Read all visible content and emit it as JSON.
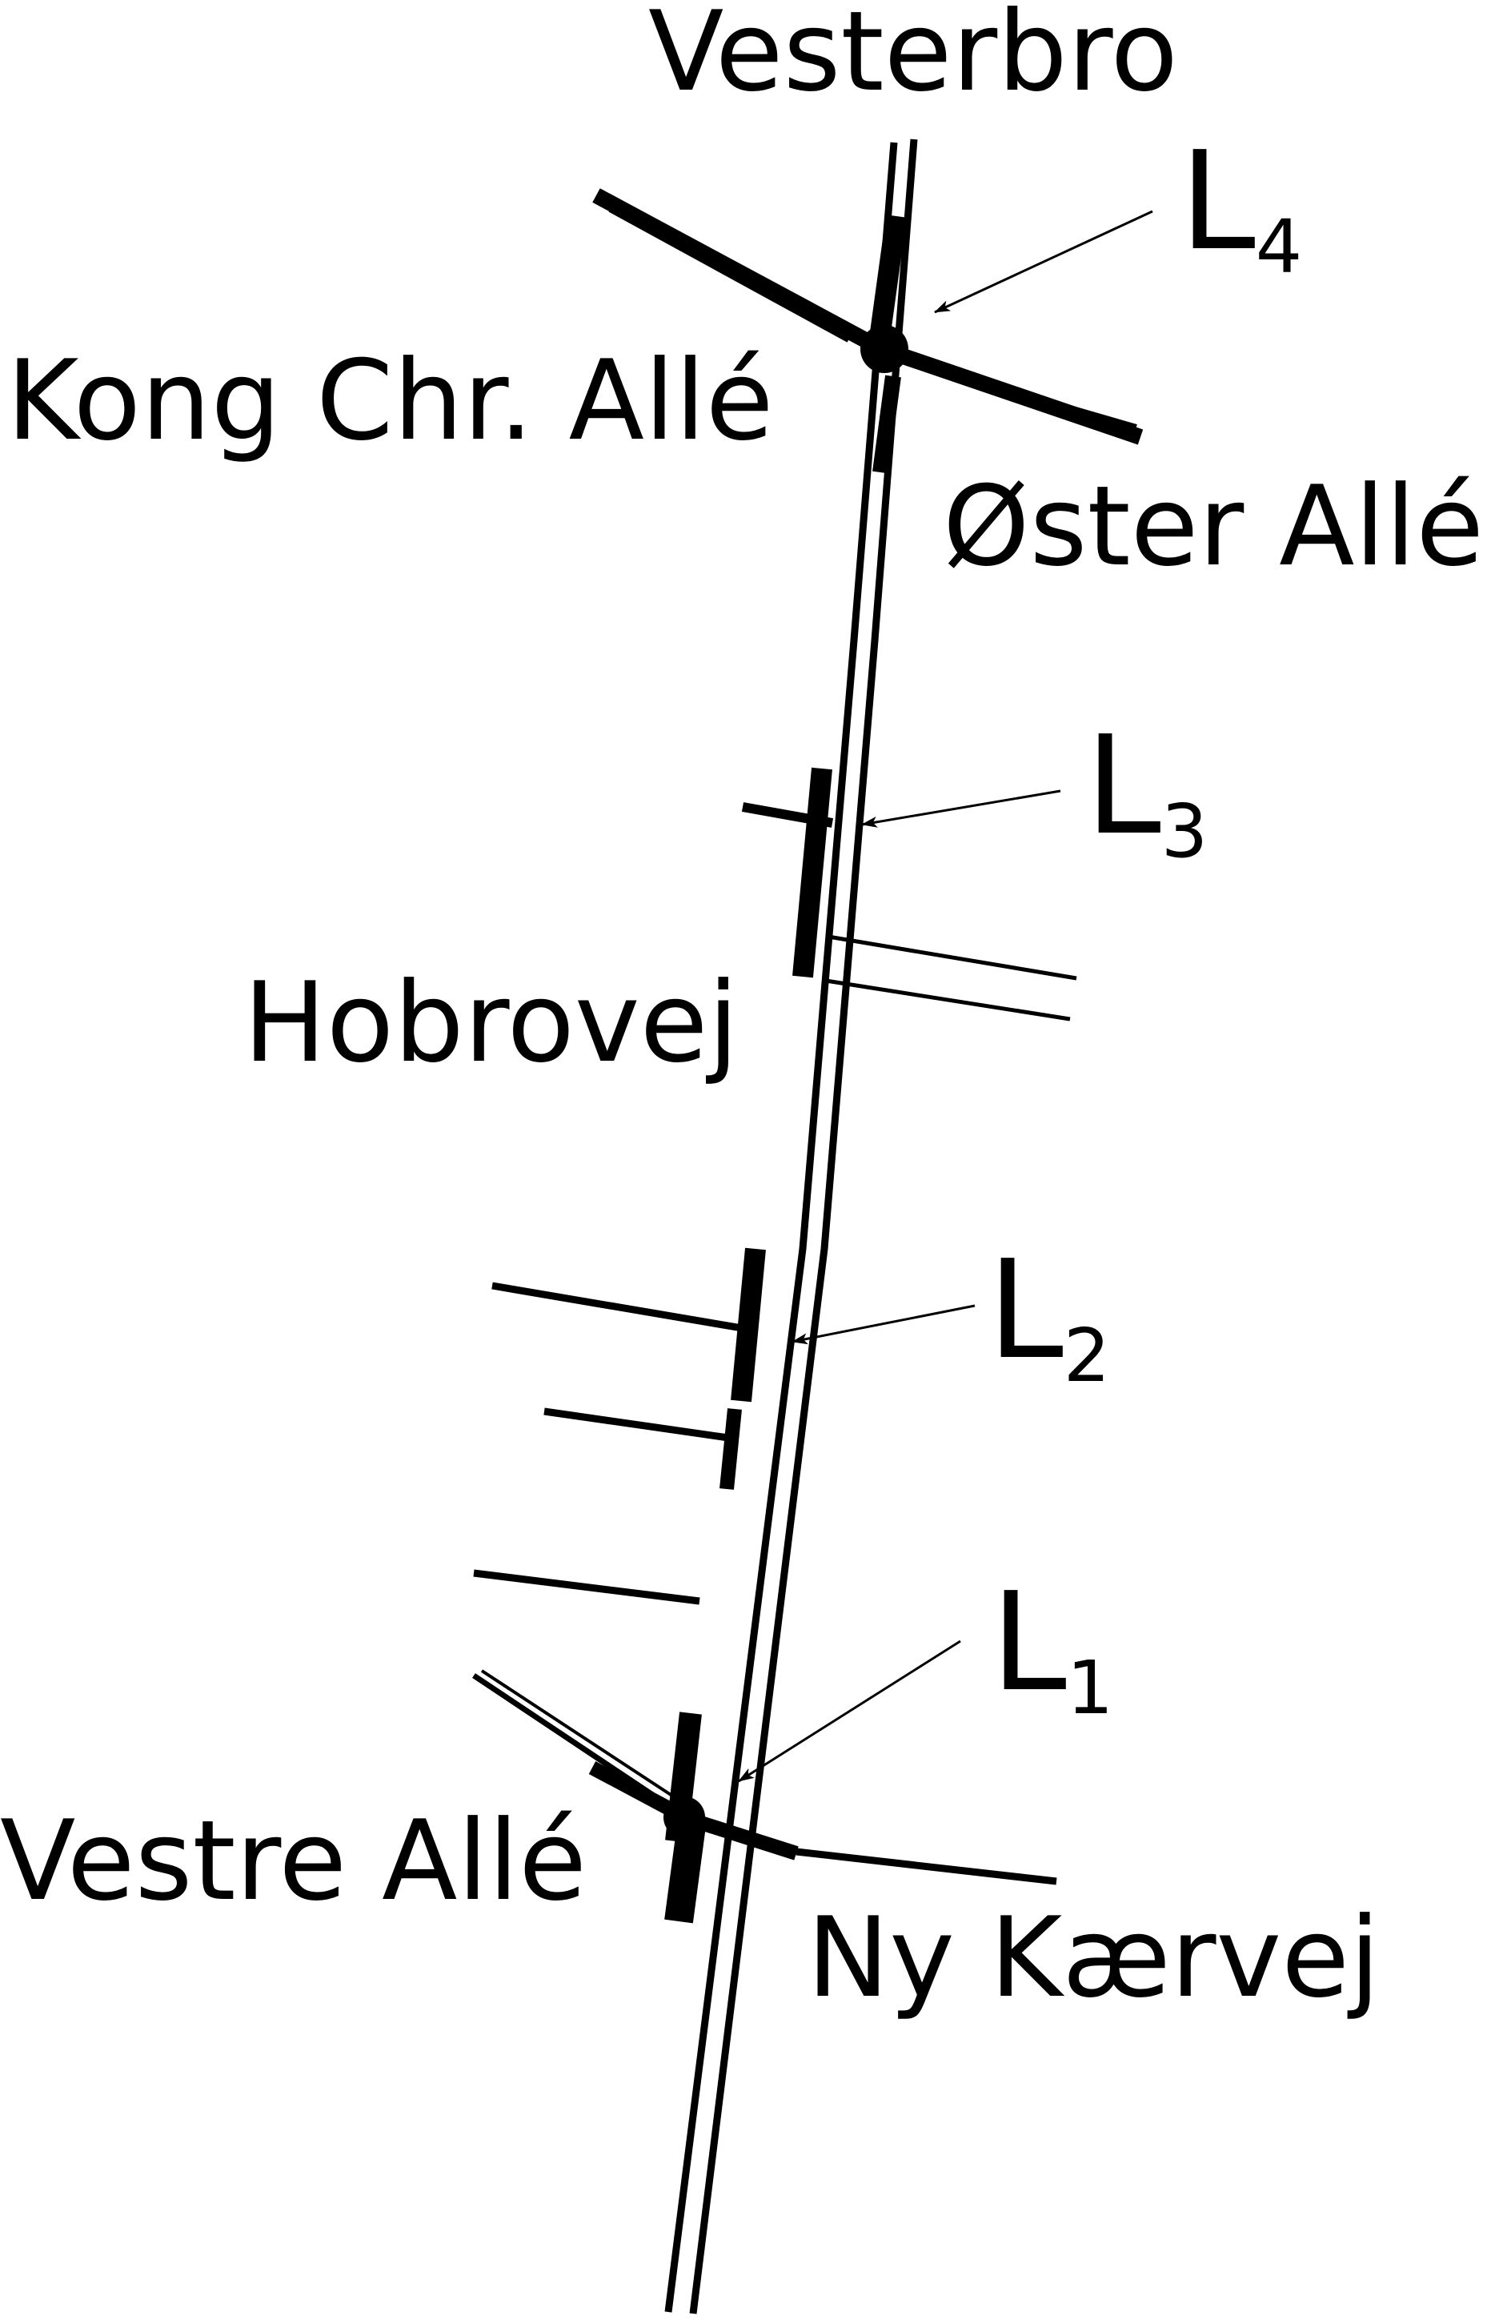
{
  "streets": {
    "vesterbro": "Vesterbro",
    "kong_chr_alle": "Kong Chr. Allé",
    "oster_alle": "Øster Allé",
    "hobrovej": "Hobrovej",
    "vestre_alle": "Vestre Allé",
    "ny_kaervej": "Ny Kærvej"
  },
  "locations": [
    {
      "letter": "L",
      "index": "4"
    },
    {
      "letter": "L",
      "index": "3"
    },
    {
      "letter": "L",
      "index": "2"
    },
    {
      "letter": "L",
      "index": "1"
    }
  ],
  "colors": {
    "road": "#000000",
    "label": "#000000",
    "background": "#ffffff"
  }
}
